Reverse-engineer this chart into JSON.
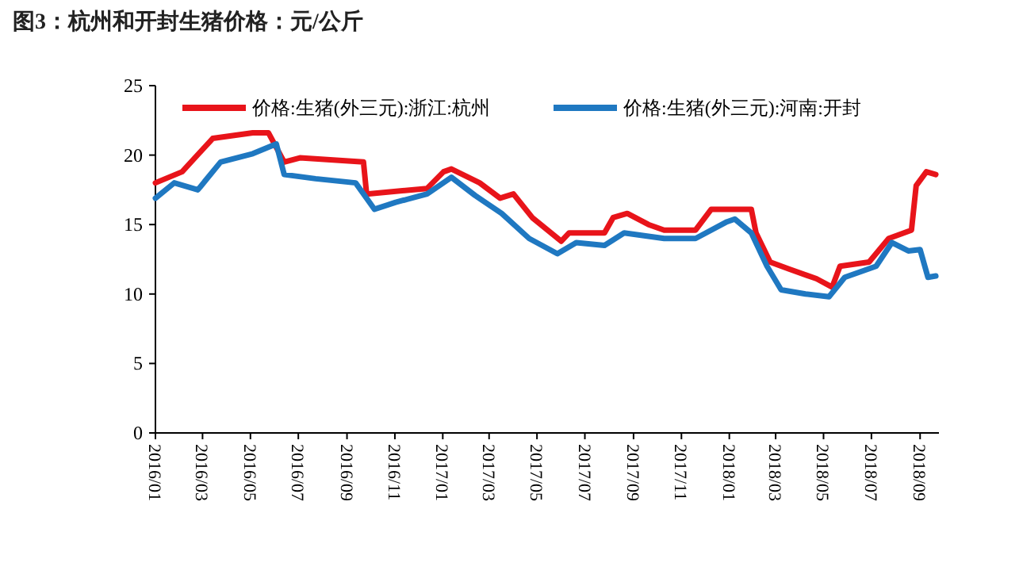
{
  "chart_data": {
    "type": "line",
    "title": "图3：杭州和开封生猪价格：元/公斤",
    "legend": "top",
    "xlim": [
      "2016-01-01",
      "2018-09-25"
    ],
    "xticks": [
      {
        "value": "2016-01-01",
        "label": "2016/01"
      },
      {
        "value": "2016-03-01",
        "label": "2016/03"
      },
      {
        "value": "2016-05-01",
        "label": "2016/05"
      },
      {
        "value": "2016-07-01",
        "label": "2016/07"
      },
      {
        "value": "2016-09-01",
        "label": "2016/09"
      },
      {
        "value": "2016-11-01",
        "label": "2016/11"
      },
      {
        "value": "2017-01-01",
        "label": "2017/01"
      },
      {
        "value": "2017-03-01",
        "label": "2017/03"
      },
      {
        "value": "2017-05-01",
        "label": "2017/05"
      },
      {
        "value": "2017-07-01",
        "label": "2017/07"
      },
      {
        "value": "2017-09-01",
        "label": "2017/09"
      },
      {
        "value": "2017-11-01",
        "label": "2017/11"
      },
      {
        "value": "2018-01-01",
        "label": "2018/01"
      },
      {
        "value": "2018-03-01",
        "label": "2018/03"
      },
      {
        "value": "2018-05-01",
        "label": "2018/05"
      },
      {
        "value": "2018-07-01",
        "label": "2018/07"
      },
      {
        "value": "2018-09-01",
        "label": "2018/09"
      }
    ],
    "ylim": [
      0,
      25
    ],
    "yticks": [
      0,
      5,
      10,
      15,
      20,
      25
    ],
    "series": [
      {
        "name": "价格:生猪(外三元):浙江:杭州",
        "color": "#e8141a",
        "x": [
          "2016-01-01",
          "2016-02-04",
          "2016-03-14",
          "2016-05-04",
          "2016-05-24",
          "2016-06-13",
          "2016-07-03",
          "2016-09-22",
          "2016-09-26",
          "2016-12-12",
          "2017-01-02",
          "2017-01-12",
          "2017-02-17",
          "2017-03-15",
          "2017-04-01",
          "2017-04-25",
          "2017-06-01",
          "2017-06-11",
          "2017-07-26",
          "2017-08-06",
          "2017-08-24",
          "2017-09-20",
          "2017-10-10",
          "2017-11-19",
          "2017-12-09",
          "2018-01-29",
          "2018-02-04",
          "2018-02-22",
          "2018-03-18",
          "2018-04-22",
          "2018-05-12",
          "2018-05-22",
          "2018-06-28",
          "2018-07-23",
          "2018-08-21",
          "2018-08-27",
          "2018-09-09",
          "2018-09-21"
        ],
        "values": [
          18.0,
          18.8,
          21.2,
          21.6,
          21.6,
          19.5,
          19.8,
          19.5,
          17.2,
          17.6,
          18.8,
          19.0,
          18.0,
          16.9,
          17.2,
          15.5,
          13.8,
          14.4,
          14.4,
          15.5,
          15.8,
          15.0,
          14.6,
          14.6,
          16.1,
          16.1,
          14.4,
          12.3,
          11.8,
          11.1,
          10.5,
          12.0,
          12.3,
          14.0,
          14.6,
          17.8,
          18.8,
          18.6
        ]
      },
      {
        "name": "价格:生猪(外三元):河南:开封",
        "color": "#1f78c1",
        "x": [
          "2016-01-01",
          "2016-01-25",
          "2016-02-24",
          "2016-03-24",
          "2016-05-04",
          "2016-06-03",
          "2016-06-13",
          "2016-07-23",
          "2016-09-12",
          "2016-10-06",
          "2016-11-02",
          "2016-12-12",
          "2017-01-12",
          "2017-02-11",
          "2017-03-17",
          "2017-04-21",
          "2017-05-27",
          "2017-06-20",
          "2017-07-26",
          "2017-08-20",
          "2017-10-10",
          "2017-11-19",
          "2017-12-29",
          "2018-01-08",
          "2018-01-29",
          "2018-02-18",
          "2018-03-08",
          "2018-04-08",
          "2018-05-08",
          "2018-05-28",
          "2018-07-07",
          "2018-07-27",
          "2018-08-17",
          "2018-09-01",
          "2018-09-11",
          "2018-09-21"
        ],
        "values": [
          16.9,
          18.0,
          17.5,
          19.5,
          20.1,
          20.8,
          18.6,
          18.3,
          18.0,
          16.1,
          16.6,
          17.2,
          18.4,
          17.1,
          15.8,
          14.0,
          12.9,
          13.7,
          13.5,
          14.4,
          14.0,
          14.0,
          15.2,
          15.4,
          14.4,
          12.0,
          10.3,
          10.0,
          9.8,
          11.2,
          12.0,
          13.7,
          13.1,
          13.2,
          11.2,
          11.3
        ]
      }
    ]
  }
}
